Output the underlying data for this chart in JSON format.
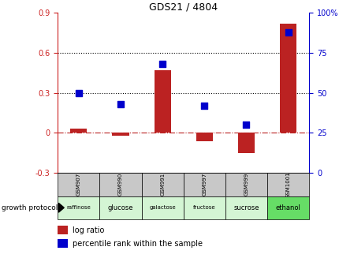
{
  "title": "GDS21 / 4804",
  "samples": [
    "GSM907",
    "GSM990",
    "GSM991",
    "GSM997",
    "GSM999",
    "GSM1001"
  ],
  "protocols": [
    "raffinose",
    "glucose",
    "galactose",
    "fructose",
    "sucrose",
    "ethanol"
  ],
  "log_ratio": [
    0.03,
    -0.02,
    0.47,
    -0.06,
    -0.15,
    0.82
  ],
  "percentile_rank": [
    50,
    43,
    68,
    42,
    30,
    88
  ],
  "bar_color": "#bb2222",
  "dot_color": "#0000cc",
  "ylim_left": [
    -0.3,
    0.9
  ],
  "ylim_right": [
    0,
    100
  ],
  "yticks_left": [
    -0.3,
    0.0,
    0.3,
    0.6,
    0.9
  ],
  "yticks_right": [
    0,
    25,
    50,
    75,
    100
  ],
  "hline_y": [
    0.3,
    0.6
  ],
  "protocol_colors": [
    "#d4f5d4",
    "#d4f5d4",
    "#d4f5d4",
    "#d4f5d4",
    "#d4f5d4",
    "#66dd66"
  ],
  "bg_color": "#ffffff",
  "header_bg": "#c8c8c8",
  "left_axis_color": "#cc2222",
  "right_axis_color": "#0000cc",
  "legend_red_label": "log ratio",
  "legend_blue_label": "percentile rank within the sample",
  "growth_protocol_label": "growth protocol"
}
